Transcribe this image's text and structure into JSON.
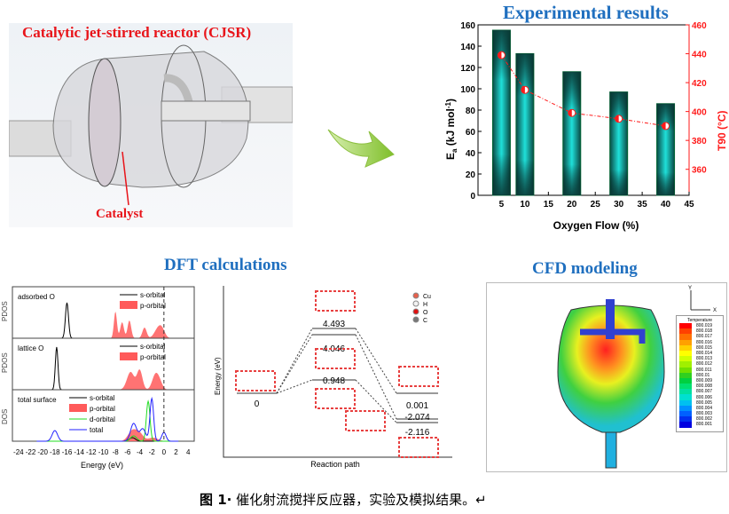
{
  "reactor": {
    "title": "Catalytic jet-stirred reactor (CJSR)",
    "catalyst_label": "Catalyst",
    "title_color": "#e8141a"
  },
  "experimental": {
    "title": "Experimental results",
    "chart_data": {
      "type": "bar",
      "xlabel": "Oxygen Flow (%)",
      "ylabel": "Ea (kJ mol-1)",
      "ylabel_main": "E",
      "ylabel_sub": "a",
      "ylabel_rest": " (kJ mol",
      "ylabel_sup": "-1",
      "ylabel_end": ")",
      "y2label": "T90 (°C)",
      "y2label_main": "T",
      "y2label_sub": "90",
      "y2label_rest": " (°C)",
      "xlim": [
        0,
        45
      ],
      "ylim": [
        0,
        160
      ],
      "y2lim": [
        342,
        460
      ],
      "xticks": [
        5,
        10,
        15,
        20,
        25,
        30,
        35,
        40,
        45
      ],
      "yticks": [
        0,
        20,
        40,
        60,
        80,
        100,
        120,
        140,
        160
      ],
      "y2ticks": [
        360,
        380,
        400,
        420,
        440,
        460
      ],
      "x": [
        5,
        10,
        20,
        30,
        40
      ],
      "series": [
        {
          "type": "bar",
          "axis": "left",
          "values": [
            155,
            133,
            116,
            97,
            86
          ],
          "color": "#1fd6d2"
        },
        {
          "type": "line",
          "axis": "right",
          "values": [
            439,
            415,
            399,
            395,
            390
          ],
          "color": "#ff1a1a"
        }
      ],
      "grid": false
    }
  },
  "dft": {
    "title": "DFT calculations",
    "dos_chart": {
      "type": "line",
      "xlabel": "Energy (eV)",
      "ylabels": [
        "PDOS",
        "PDOS",
        "DOS"
      ],
      "xlim": [
        -25,
        5
      ],
      "xticks": [
        -24,
        -22,
        -20,
        -18,
        -16,
        -14,
        -12,
        -10,
        -8,
        -6,
        -4,
        -2,
        0,
        2,
        4
      ],
      "fermi_level": 0,
      "panels": [
        {
          "label": "adsorbed O",
          "legend": [
            "s-orbital",
            "p-orbital"
          ]
        },
        {
          "label": "lattice O",
          "legend": [
            "s-orbital",
            "p-orbital"
          ]
        },
        {
          "label": "total surface",
          "legend": [
            "s-orbital",
            "p-orbital",
            "d-orbital",
            "total"
          ]
        }
      ],
      "colors": {
        "s-orbital": "#000000",
        "p-orbital": "#ff4d4d",
        "d-orbital": "#22dd22",
        "total": "#2222ff"
      }
    },
    "energy_chart": {
      "type": "line",
      "xlabel": "Reaction path",
      "ylabel": "Energy (eV)",
      "levels": [
        {
          "stage": 0,
          "value": "0"
        },
        {
          "stage": 1,
          "value": "4.493"
        },
        {
          "stage": 1,
          "value": "4.046"
        },
        {
          "stage": 1,
          "value": "0.948"
        },
        {
          "stage": 2,
          "value": "0.001"
        },
        {
          "stage": 2,
          "value": "-2.074"
        },
        {
          "stage": 2,
          "value": "-2.116"
        }
      ],
      "legend": [
        {
          "label": "Cu",
          "color": "#e8604c"
        },
        {
          "label": "H",
          "color": "#f2f2f2"
        },
        {
          "label": "O",
          "color": "#e01010"
        },
        {
          "label": "C",
          "color": "#777777"
        }
      ]
    }
  },
  "cfd": {
    "title": "CFD modeling",
    "axis_y": "Y",
    "axis_x": "X",
    "legend_title": "Temperature",
    "legend_values": [
      "800.019",
      "800.018",
      "800.017",
      "800.016",
      "800.015",
      "800.014",
      "800.013",
      "800.012",
      "800.011",
      "800.01",
      "800.009",
      "800.008",
      "800.007",
      "800.006",
      "800.005",
      "800.004",
      "800.003",
      "800.002",
      "800.001"
    ],
    "legend_colors": [
      "#ff0000",
      "#ff4000",
      "#ff7000",
      "#ffa000",
      "#ffd000",
      "#ffff00",
      "#d0ff00",
      "#a0f000",
      "#70e000",
      "#30d020",
      "#00d040",
      "#00e070",
      "#00e0a0",
      "#00e0d0",
      "#00c0f0",
      "#0090ff",
      "#0060ff",
      "#0030f0",
      "#0000e0"
    ]
  },
  "caption": {
    "label": "图 1·",
    "text": " 催化射流搅拌反应器，实验及模拟结果。↵"
  }
}
